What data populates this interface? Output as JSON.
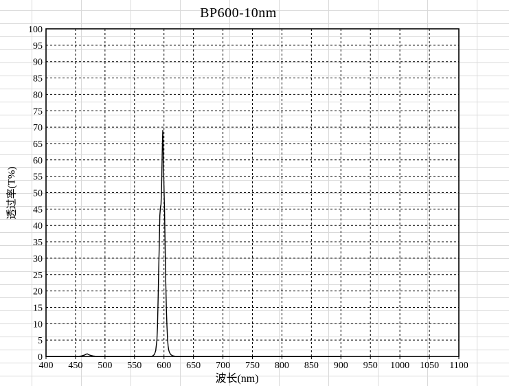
{
  "window": {
    "description": "Spreadsheet-embedded spectral transmittance chart"
  },
  "chart_data": {
    "type": "line",
    "title": "BP600-10nm",
    "xlabel": "波长(nm)",
    "ylabel": "透过率(T%)",
    "xlim": [
      400,
      1100
    ],
    "ylim": [
      0,
      100
    ],
    "x_tick_step": 50,
    "y_tick_step": 5,
    "grid": "dashed-major-both-axes",
    "legend": "none",
    "plot_background": "transparent",
    "series": [
      {
        "name": "transmittance",
        "color": "#000000",
        "peak_wavelength_nm": 598,
        "peak_transmittance_pct": 69,
        "points": [
          [
            400,
            0
          ],
          [
            420,
            0
          ],
          [
            440,
            0
          ],
          [
            450,
            0
          ],
          [
            455,
            0.05
          ],
          [
            460,
            0.15
          ],
          [
            465,
            0.4
          ],
          [
            468,
            0.7
          ],
          [
            470,
            0.8
          ],
          [
            473,
            0.5
          ],
          [
            476,
            0.3
          ],
          [
            480,
            0.15
          ],
          [
            485,
            0.05
          ],
          [
            490,
            0
          ],
          [
            510,
            0
          ],
          [
            530,
            0
          ],
          [
            550,
            0
          ],
          [
            565,
            0
          ],
          [
            575,
            0
          ],
          [
            580,
            0.1
          ],
          [
            582,
            0.3
          ],
          [
            584,
            0.7
          ],
          [
            586,
            1.8
          ],
          [
            588,
            5
          ],
          [
            589,
            9
          ],
          [
            590,
            17
          ],
          [
            591,
            26
          ],
          [
            592,
            34
          ],
          [
            593,
            43
          ],
          [
            594,
            45.5
          ],
          [
            595,
            46.5
          ],
          [
            596,
            52
          ],
          [
            597,
            62
          ],
          [
            597.5,
            66
          ],
          [
            598,
            69
          ],
          [
            598.5,
            66
          ],
          [
            599,
            60
          ],
          [
            600,
            52
          ],
          [
            601,
            44
          ],
          [
            602,
            33
          ],
          [
            603,
            23
          ],
          [
            604,
            15
          ],
          [
            605,
            9.5
          ],
          [
            606,
            5.5
          ],
          [
            607,
            3.2
          ],
          [
            608,
            2
          ],
          [
            609,
            1.4
          ],
          [
            610,
            1
          ],
          [
            612,
            0.5
          ],
          [
            615,
            0.2
          ],
          [
            618,
            0.1
          ],
          [
            622,
            0
          ],
          [
            640,
            0
          ],
          [
            660,
            0
          ],
          [
            680,
            0
          ],
          [
            700,
            0
          ],
          [
            725,
            0
          ],
          [
            750,
            0
          ],
          [
            775,
            0
          ],
          [
            800,
            0
          ],
          [
            825,
            0
          ],
          [
            850,
            0
          ],
          [
            875,
            0
          ],
          [
            900,
            0
          ]
        ]
      }
    ]
  },
  "colors": {
    "curve": "#000000",
    "plot_border": "#000000",
    "major_grid": "#000000",
    "sheet_grid": "#d9d9d9",
    "background": "#ffffff",
    "text": "#000000"
  }
}
